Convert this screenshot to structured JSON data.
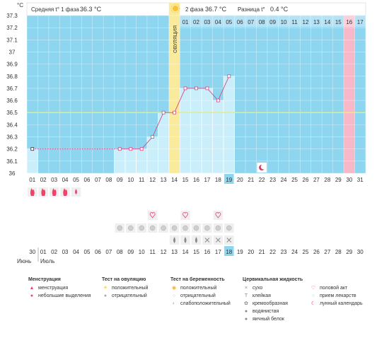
{
  "header": {
    "unit": "°C",
    "phase1_label": "Средняя t° 1 фаза",
    "phase1_value": "36.3 °C",
    "phase2_label": "2 фаза",
    "phase2_value": "36.7 °C",
    "diff_label": "Разница t°",
    "diff_value": "0.4 °C",
    "ovulation_label": "ОВУЛЯЦИЯ",
    "phase2_days": [
      "01",
      "02",
      "03",
      "04",
      "05",
      "06",
      "07",
      "08",
      "09",
      "10",
      "11",
      "12",
      "13",
      "14",
      "15",
      "16",
      "17"
    ],
    "highlight_day": "16"
  },
  "chart_data": {
    "type": "line",
    "y_ticks": [
      "37.3",
      "37.2",
      "37.1",
      "37",
      "36.9",
      "36.8",
      "36.7",
      "36.6",
      "36.5",
      "36.4",
      "36.3",
      "36.2",
      "36.1",
      "36"
    ],
    "ylim": [
      36,
      37.3
    ],
    "cycle_days": [
      "01",
      "02",
      "03",
      "04",
      "05",
      "06",
      "07",
      "08",
      "09",
      "10",
      "11",
      "12",
      "13",
      "14",
      "15",
      "16",
      "17",
      "18",
      "19",
      "20",
      "21",
      "22",
      "23",
      "24",
      "25",
      "26",
      "27",
      "28",
      "29",
      "30",
      "31"
    ],
    "current_cycle_day": "19",
    "ovulation_day": 14,
    "coverline": 36.5,
    "temperatures": [
      {
        "day": 1,
        "t": 36.2
      },
      {
        "day": 9,
        "t": 36.2
      },
      {
        "day": 10,
        "t": 36.2
      },
      {
        "day": 11,
        "t": 36.2
      },
      {
        "day": 12,
        "t": 36.3
      },
      {
        "day": 13,
        "t": 36.5
      },
      {
        "day": 14,
        "t": 36.5
      },
      {
        "day": 15,
        "t": 36.7
      },
      {
        "day": 16,
        "t": 36.7
      },
      {
        "day": 17,
        "t": 36.7
      },
      {
        "day": 18,
        "t": 36.6
      },
      {
        "day": 19,
        "t": 36.8
      }
    ]
  },
  "markers": {
    "moon_day": 22,
    "menstruation_days": [
      1,
      2,
      3,
      4
    ],
    "light_spotting_day": 5,
    "intercourse_days": [
      12,
      15,
      18
    ],
    "ovulation_test_negative_days": [
      9,
      10,
      11,
      12,
      13,
      14,
      15,
      16,
      17,
      18,
      19
    ],
    "egg_white_days": [
      14,
      15,
      16
    ],
    "dry_days": [
      18
    ],
    "sticky_days": [
      17,
      19
    ]
  },
  "calendar": {
    "month_prev": "Июнь",
    "month_next": "Июль",
    "dates": [
      "30",
      "01",
      "02",
      "03",
      "04",
      "05",
      "06",
      "07",
      "08",
      "09",
      "10",
      "11",
      "12",
      "13",
      "14",
      "15",
      "16",
      "17",
      "18",
      "19",
      "20",
      "21",
      "22",
      "23",
      "24",
      "25",
      "26",
      "27",
      "28",
      "29",
      "30"
    ],
    "weekend_indexes": [
      2,
      3,
      9,
      10,
      16,
      17,
      23,
      24,
      30
    ],
    "today_index": 18
  },
  "legend": {
    "menstruation": {
      "title": "Менструация",
      "items": [
        {
          "icon": "flame-icon",
          "label": "менструация"
        },
        {
          "icon": "drop-icon",
          "label": "небольшие выделения"
        }
      ]
    },
    "ovulation_test": {
      "title": "Тест на овуляцию",
      "items": [
        {
          "icon": "sun-icon",
          "label": "положительный"
        },
        {
          "icon": "gray-circle-icon",
          "label": "отрицательный"
        }
      ]
    },
    "pregnancy_test": {
      "title": "Тест на беременность",
      "items": [
        {
          "icon": "positive-icon",
          "label": "положительный"
        },
        {
          "icon": "negative-icon",
          "label": "отрицательный"
        },
        {
          "icon": "weak-icon",
          "label": "слабоположительный"
        }
      ]
    },
    "cervical": {
      "title": "Цервикальная жидкость",
      "items": [
        {
          "icon": "x-icon",
          "label": "сухо"
        },
        {
          "icon": "t-icon",
          "label": "клейкая"
        },
        {
          "icon": "cream-icon",
          "label": "кремообразная"
        },
        {
          "icon": "water-icon",
          "label": "водянистая"
        },
        {
          "icon": "egg-white-icon",
          "label": "яичный белок"
        }
      ]
    },
    "other": {
      "items": [
        {
          "icon": "heart-icon",
          "label": "половой акт"
        },
        {
          "icon": "pill-icon",
          "label": "прием лекарств"
        },
        {
          "icon": "moon-icon",
          "label": "лунный календарь"
        }
      ]
    }
  },
  "colors": {
    "sky": "#8ed5f0",
    "bar": "#cbeefb",
    "ovulation": "#faeb9c",
    "highlight": "#f7b8c8",
    "line": "#d64b86",
    "coverline": "#e8ef6a",
    "menstruation": "#f0436a"
  }
}
